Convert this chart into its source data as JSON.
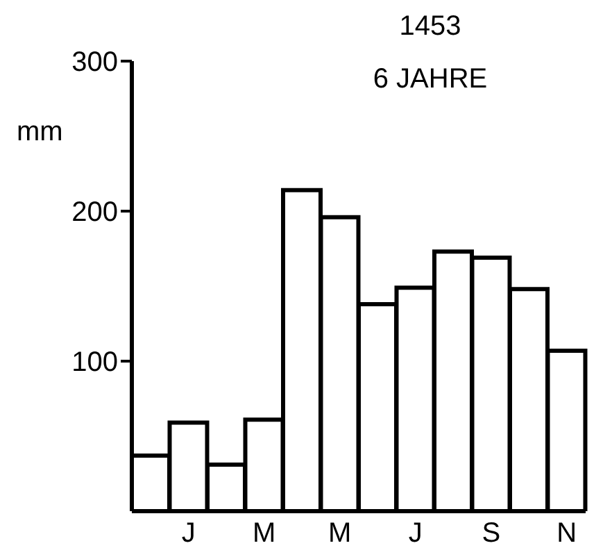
{
  "chart_data": {
    "type": "bar",
    "title": "1453",
    "subtitle": "6 JAHRE",
    "ylabel": "mm",
    "categories": [
      null,
      "J",
      null,
      "M",
      null,
      "M",
      null,
      "J",
      null,
      "S",
      null,
      "N"
    ],
    "values": [
      37,
      59,
      31,
      61,
      214,
      196,
      138,
      149,
      173,
      169,
      148,
      107
    ],
    "color": "#ffffff",
    "ylim": [
      0,
      300
    ],
    "yticks": [
      100,
      200,
      300
    ]
  }
}
